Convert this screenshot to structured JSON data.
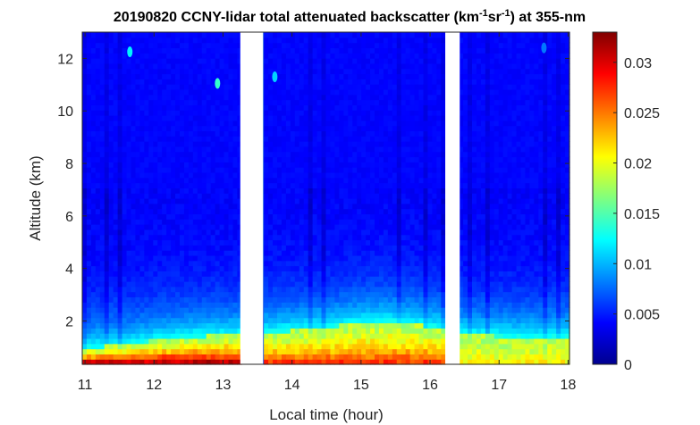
{
  "chart_data": {
    "type": "heatmap",
    "title": {
      "prefix": "20190820 CCNY-lidar total attenuated backscatter (km",
      "sup1": "-1",
      "mid": "sr",
      "sup2": "-1",
      "suffix": ") at 355-nm"
    },
    "xlabel": "Local time (hour)",
    "ylabel": "Altitude (km)",
    "xlim": [
      10.96,
      18.02
    ],
    "ylim": [
      0.35,
      13.0
    ],
    "xticks": [
      11,
      12,
      13,
      14,
      15,
      16,
      17,
      18
    ],
    "yticks": [
      2,
      4,
      6,
      8,
      10,
      12
    ],
    "colorbar": {
      "colormap": "jet",
      "range": [
        0,
        0.033
      ],
      "ticks": [
        "0",
        "0.005",
        "0.01",
        "0.015",
        "0.02",
        "0.025",
        "0.03"
      ],
      "tick_values": [
        0,
        0.005,
        0.01,
        0.015,
        0.02,
        0.025,
        0.03
      ]
    },
    "data_gaps": [
      [
        13.25,
        13.58
      ],
      [
        16.22,
        16.43
      ]
    ],
    "surface_layer": {
      "segments": [
        {
          "t_start": 10.96,
          "t_end": 13.25,
          "top_km": [
            0.95,
            1.05,
            1.15,
            1.3,
            1.4,
            1.45,
            1.5
          ],
          "peak_value": 0.033
        },
        {
          "t_start": 13.58,
          "t_end": 16.22,
          "top_km": [
            1.55,
            1.65,
            1.75,
            1.9,
            2.0,
            1.9,
            1.7
          ],
          "peak_value": 0.028
        },
        {
          "t_start": 16.43,
          "t_end": 18.02,
          "top_km": [
            1.5,
            1.45,
            1.4,
            1.4,
            1.4
          ],
          "peak_value": 0.021
        }
      ],
      "background_value": 0.004
    },
    "cirrus_patches": [
      {
        "t": 11.65,
        "alt_km": 12.25,
        "value": 0.012
      },
      {
        "t": 12.92,
        "alt_km": 11.05,
        "value": 0.014
      },
      {
        "t": 13.75,
        "alt_km": 11.3,
        "value": 0.011
      },
      {
        "t": 17.65,
        "alt_km": 12.4,
        "value": 0.008
      }
    ]
  }
}
